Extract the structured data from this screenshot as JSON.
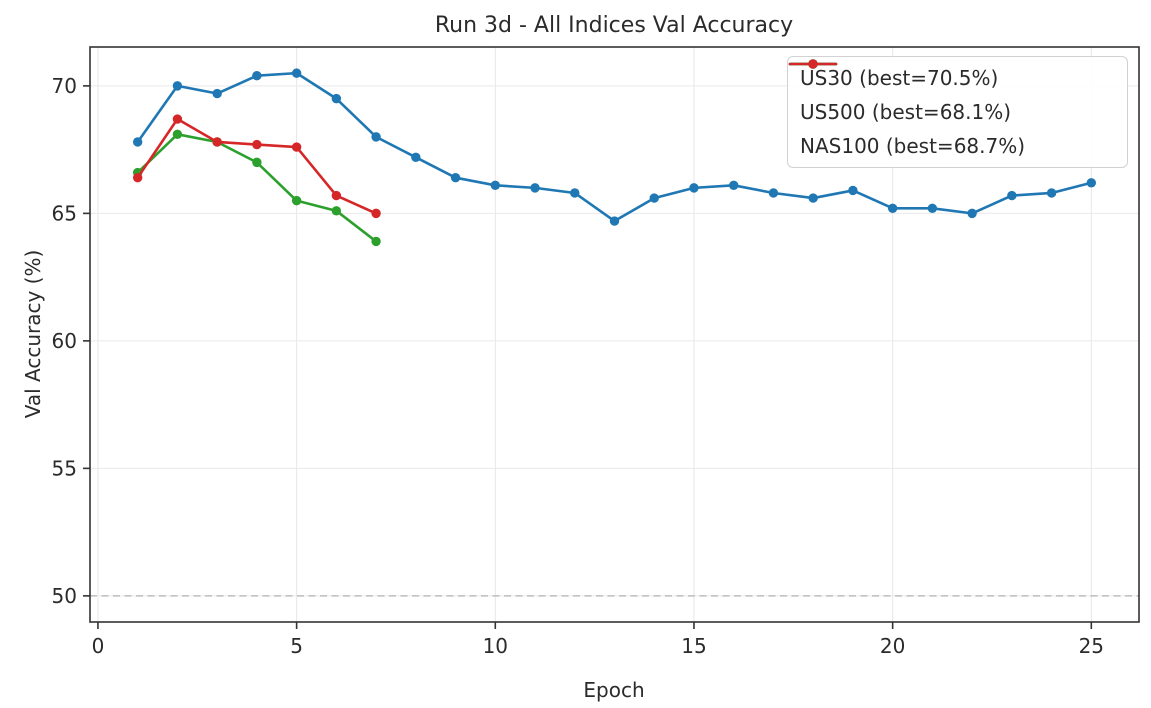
{
  "chart_data": {
    "type": "line",
    "title": "Run 3d - All Indices Val Accuracy",
    "xlabel": "Epoch",
    "ylabel": "Val Accuracy (%)",
    "xlim": [
      -0.2,
      26.2
    ],
    "ylim": [
      48.975,
      71.525
    ],
    "xticks": [
      0,
      5,
      10,
      15,
      20,
      25
    ],
    "yticks": [
      50,
      55,
      60,
      65,
      70
    ],
    "grid": true,
    "legend_position": "upper right",
    "reference_line": {
      "y": 50,
      "style": "dashed",
      "color": "#bdbdbd"
    },
    "series": [
      {
        "name": "US30 (best=70.5%)",
        "color": "#1f77b4",
        "marker": "circle",
        "x": [
          1,
          2,
          3,
          4,
          5,
          6,
          7,
          8,
          9,
          10,
          11,
          12,
          13,
          14,
          15,
          16,
          17,
          18,
          19,
          20,
          21,
          22,
          23,
          24,
          25
        ],
        "values": [
          67.8,
          70.0,
          69.7,
          70.4,
          70.5,
          69.5,
          68.0,
          67.2,
          66.4,
          66.1,
          66.0,
          65.8,
          64.7,
          65.6,
          66.0,
          66.1,
          65.8,
          65.6,
          65.9,
          65.2,
          65.2,
          65.0,
          65.7,
          65.8,
          66.2
        ]
      },
      {
        "name": "US500 (best=68.1%)",
        "color": "#2ca02c",
        "marker": "circle",
        "x": [
          1,
          2,
          3,
          4,
          5,
          6,
          7
        ],
        "values": [
          66.6,
          68.1,
          67.8,
          67.0,
          65.5,
          65.1,
          63.9
        ]
      },
      {
        "name": "NAS100 (best=68.7%)",
        "color": "#d62728",
        "marker": "circle",
        "x": [
          1,
          2,
          3,
          4,
          5,
          6,
          7
        ],
        "values": [
          66.4,
          68.7,
          67.8,
          67.7,
          67.6,
          65.7,
          65.0
        ]
      }
    ],
    "colors": {
      "text": "#2b2b2b",
      "grid": "#e9e9e9",
      "spine": "#333333",
      "background": "#ffffff",
      "legend_border": "#d2d2d2"
    }
  }
}
